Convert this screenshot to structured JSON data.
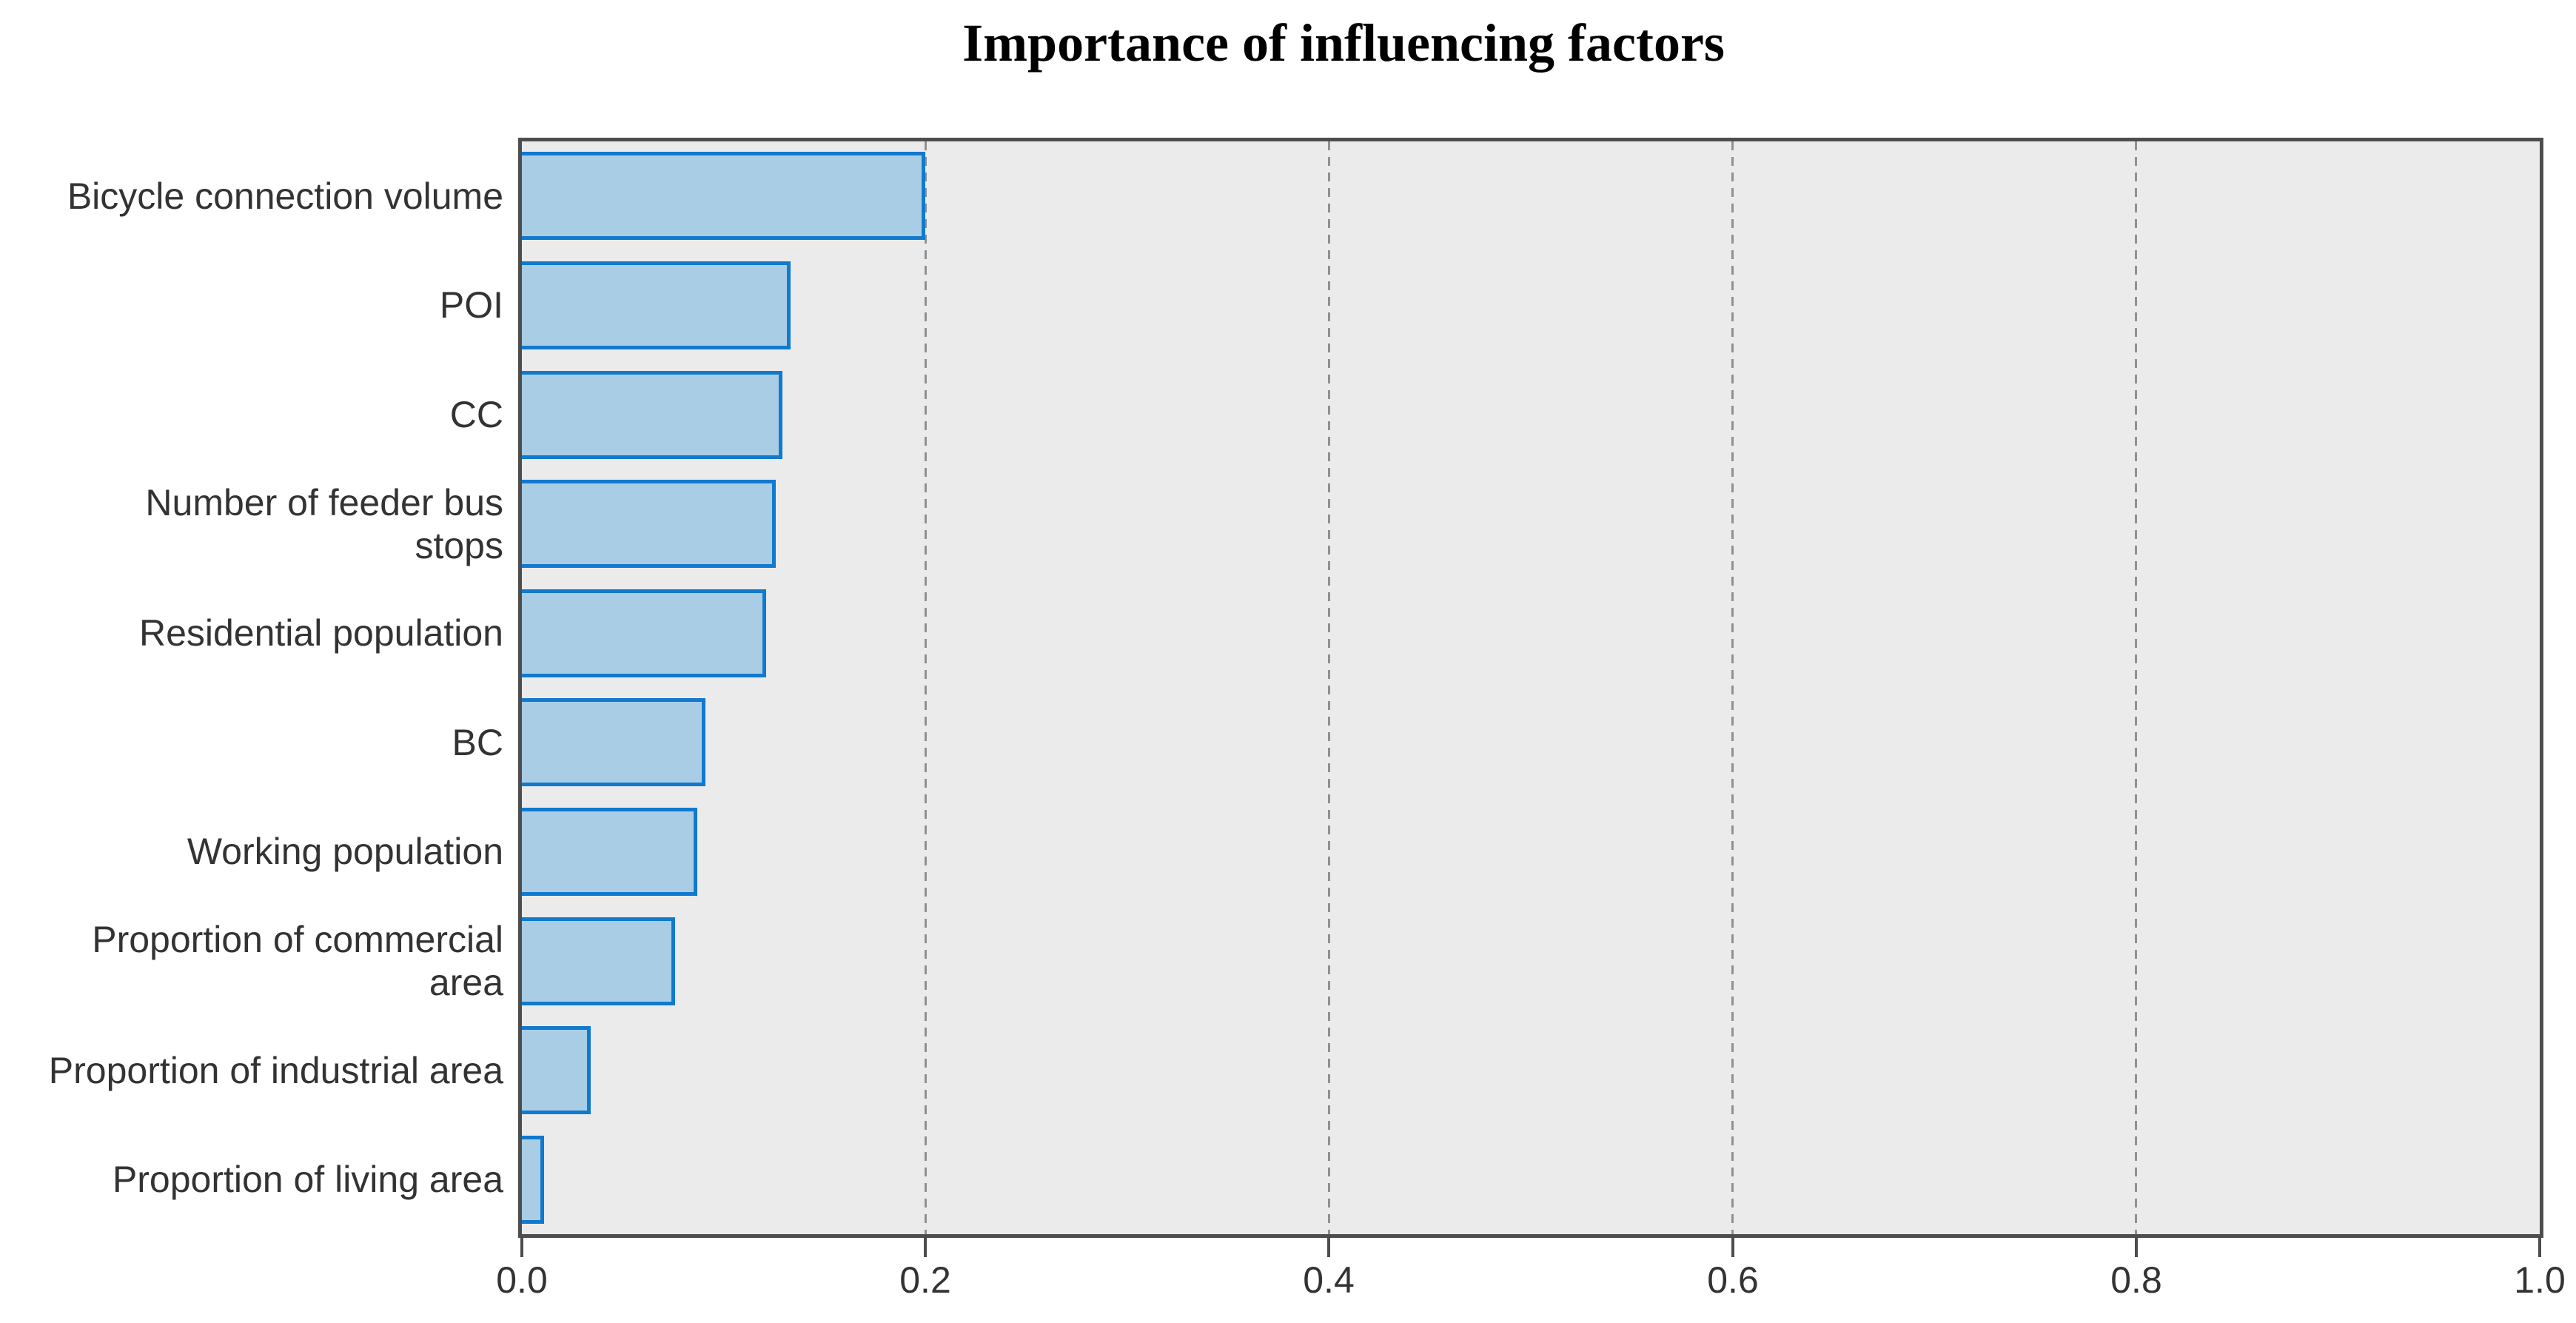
{
  "title": "Importance of influencing factors",
  "chart_data": {
    "type": "bar",
    "orientation": "horizontal",
    "title": "Importance of influencing factors",
    "categories": [
      "Bicycle connection volume",
      "POI",
      "CC",
      "Number of feeder bus\nstops",
      "Residential population",
      "BC",
      "Working population",
      "Proportion of commercial\narea",
      "Proportion of industrial area",
      "Proportion of living area"
    ],
    "values": [
      0.2,
      0.133,
      0.129,
      0.126,
      0.121,
      0.091,
      0.087,
      0.076,
      0.034,
      0.011
    ],
    "xlabel": "",
    "ylabel": "",
    "xlim": [
      0.0,
      1.0
    ],
    "x_ticks": [
      "0.0",
      "0.2",
      "0.4",
      "0.6",
      "0.8",
      "1.0"
    ],
    "gridlines_x": [
      0.2,
      0.4,
      0.6,
      0.8
    ],
    "gridline_style": "dashed",
    "legend": "none",
    "colors": {
      "bar_fill": "#aacde6",
      "bar_border": "#1179ce",
      "plot_background": "#ebebeb",
      "axis_border": "#4d4d4d",
      "gridline": "#909090",
      "text": "#333333",
      "title_text": "#000000"
    }
  }
}
